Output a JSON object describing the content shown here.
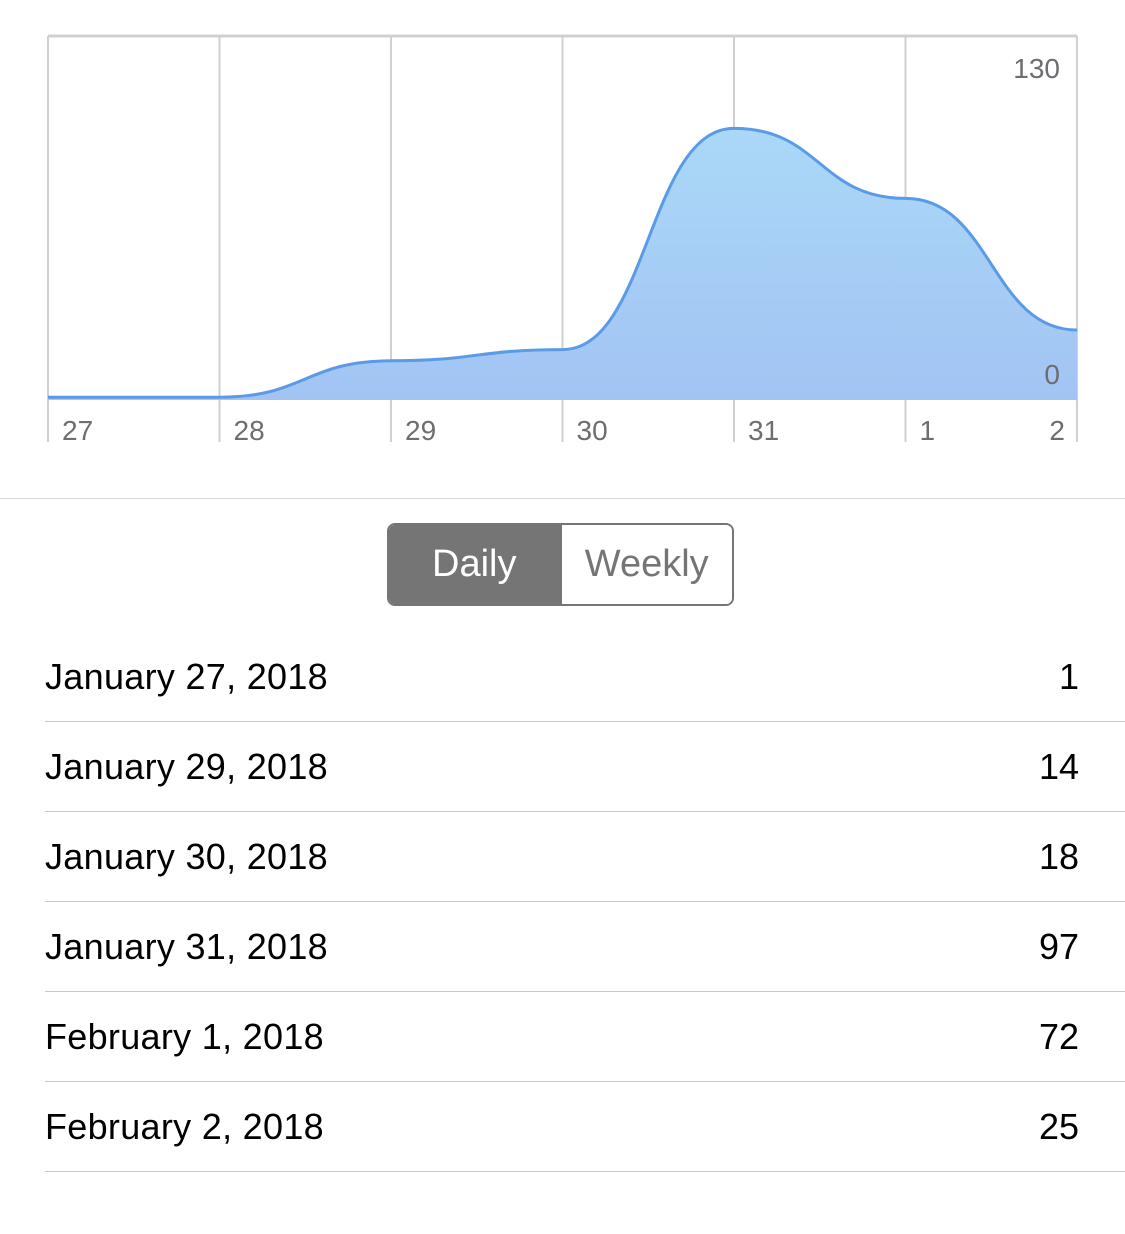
{
  "colors": {
    "line": "#5a9ae6",
    "fill_top": "#aad8f7",
    "fill_bottom": "#a2c4f3",
    "grid": "#d0d0d0",
    "segment_active": "#757575"
  },
  "chart_data": {
    "type": "area",
    "x_tick_labels": [
      "27",
      "28",
      "29",
      "30",
      "31",
      "1",
      "2"
    ],
    "values": [
      1,
      1,
      14,
      18,
      97,
      72,
      25
    ],
    "y_max_label": "130",
    "y_min_label": "0",
    "ylim": [
      0,
      130
    ],
    "grid": "vertical"
  },
  "segmented": {
    "daily_label": "Daily",
    "weekly_label": "Weekly",
    "selected": "Daily"
  },
  "rows": [
    {
      "date": "January 27, 2018",
      "value": "1"
    },
    {
      "date": "January 29, 2018",
      "value": "14"
    },
    {
      "date": "January 30, 2018",
      "value": "18"
    },
    {
      "date": "January 31, 2018",
      "value": "97"
    },
    {
      "date": "February 1, 2018",
      "value": "72"
    },
    {
      "date": "February 2, 2018",
      "value": "25"
    }
  ]
}
